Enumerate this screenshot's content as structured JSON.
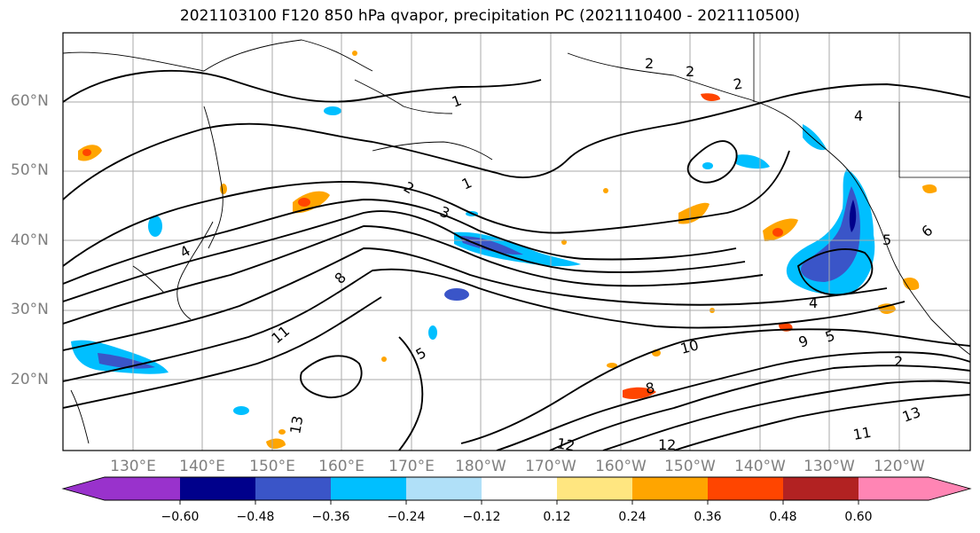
{
  "title": "2021103100 F120 850 hPa qvapor, precipitation PC (2021110400 - 2021110500)",
  "latitude_labels": [
    "60°N",
    "50°N",
    "40°N",
    "30°N",
    "20°N"
  ],
  "longitude_labels": [
    "130°E",
    "140°E",
    "150°E",
    "160°E",
    "170°E",
    "180°W",
    "170°W",
    "160°W",
    "150°W",
    "140°W",
    "130°W",
    "120°W"
  ],
  "colorbar": {
    "tick_labels": [
      "−0.60",
      "−0.48",
      "−0.36",
      "−0.24",
      "−0.12",
      "0.12",
      "0.24",
      "0.36",
      "0.48",
      "0.60"
    ],
    "colors": [
      "#9932cc",
      "#00008b",
      "#3a55c8",
      "#00bfff",
      "#b0e0f8",
      "#ffffff",
      "#ffe680",
      "#ffa500",
      "#ff4500",
      "#b22222",
      "#ff85b4"
    ]
  },
  "contour_labels": [
    "1",
    "1",
    "2",
    "2",
    "2",
    "3",
    "4",
    "4",
    "4",
    "5",
    "5",
    "6",
    "8",
    "8",
    "9",
    "10",
    "11",
    "11",
    "12",
    "12",
    "13",
    "13",
    "2",
    "2",
    "5"
  ],
  "legend_note": ""
}
